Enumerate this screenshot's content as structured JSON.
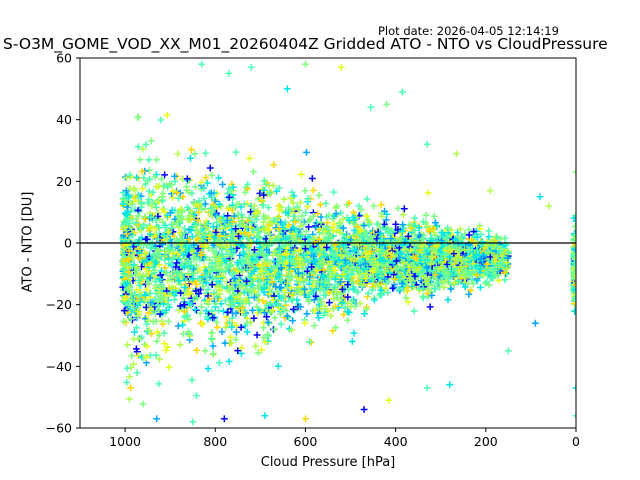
{
  "header": {
    "plot_date": "Plot date: 2026-04-05 12:14:19",
    "title": "S-O3M_GOME_VOD_XX_M01_20260404Z Gridded ATO - NTO vs CloudPressure"
  },
  "chart_data": {
    "type": "scatter",
    "title": "S-O3M_GOME_VOD_XX_M01_20260404Z Gridded ATO - NTO vs CloudPressure",
    "xlabel": "Cloud Pressure [hPa]",
    "ylabel": "ATO - NTO [DU]",
    "xlim": [
      1100,
      0
    ],
    "ylim": [
      -60,
      60
    ],
    "x_inverted": true,
    "xticks": [
      1000,
      800,
      600,
      400,
      200,
      0
    ],
    "yticks": [
      -60,
      -40,
      -20,
      0,
      20,
      40,
      60
    ],
    "marker": "+",
    "reference_line": {
      "y": 0,
      "color": "#000000"
    },
    "grid": false,
    "legend": "none",
    "colors": [
      "#0000ff",
      "#00a5ff",
      "#00e6e6",
      "#4dffb3",
      "#7fff7f",
      "#b3ff4d",
      "#e6ff1a",
      "#ffd700"
    ],
    "clusters": [
      {
        "name": "main cloud",
        "x_range": [
          1000,
          150
        ],
        "y_center": -5,
        "y_spread_min": 6,
        "y_spread_max": 38,
        "count": 4200
      },
      {
        "name": "left edge column",
        "x_range": [
          1005,
          990
        ],
        "y_center": -5,
        "y_spread_min": 20,
        "y_spread_max": 20,
        "count": 220
      },
      {
        "name": "zero pressure column",
        "x_range": [
          5,
          0
        ],
        "y_center": -8,
        "y_spread_min": 14,
        "y_spread_max": 14,
        "count": 180
      }
    ],
    "notable_points": [
      {
        "x": 830,
        "y": 58
      },
      {
        "x": 770,
        "y": 55
      },
      {
        "x": 720,
        "y": 57
      },
      {
        "x": 600,
        "y": 58
      },
      {
        "x": 640,
        "y": 50
      },
      {
        "x": 520,
        "y": 57
      },
      {
        "x": 455,
        "y": 44
      },
      {
        "x": 420,
        "y": 45
      },
      {
        "x": 385,
        "y": 49
      },
      {
        "x": 330,
        "y": 32
      },
      {
        "x": 265,
        "y": 29
      },
      {
        "x": 190,
        "y": 17
      },
      {
        "x": 80,
        "y": 15
      },
      {
        "x": 60,
        "y": 12
      },
      {
        "x": 930,
        "y": -57
      },
      {
        "x": 850,
        "y": -58
      },
      {
        "x": 780,
        "y": -57
      },
      {
        "x": 690,
        "y": -56
      },
      {
        "x": 600,
        "y": -57
      },
      {
        "x": 470,
        "y": -54
      },
      {
        "x": 415,
        "y": -51
      },
      {
        "x": 330,
        "y": -47
      },
      {
        "x": 280,
        "y": -46
      },
      {
        "x": 150,
        "y": -35
      },
      {
        "x": 90,
        "y": -26
      },
      {
        "x": 0,
        "y": -56
      },
      {
        "x": 0,
        "y": -47
      },
      {
        "x": 0,
        "y": 23
      }
    ]
  }
}
